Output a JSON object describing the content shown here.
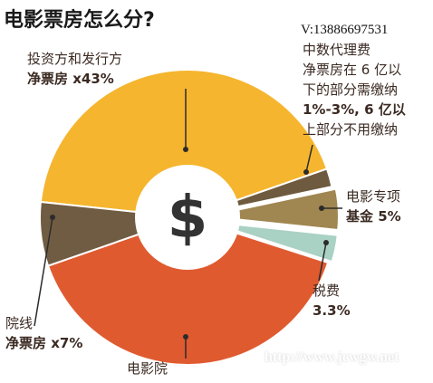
{
  "title": "电影票房怎么分?",
  "phone_text": "V:13886697531",
  "watermark": "http://www.jcwgw.net",
  "center_symbol": "$",
  "colors": {
    "investor": "#f5b52e",
    "agency": "#6e5a3f",
    "special_fund": "#a08650",
    "tax": "#a9d1c4",
    "cinema_chain": "#705c42",
    "cinema": "#e05a30",
    "center": "#ffffff",
    "symbol": "#333333"
  },
  "labels": {
    "investor_line1": "投资方和发行方",
    "investor_line2": "净票房 x43%",
    "agency_line1": "中数代理费",
    "agency_line2": "净票房在 6 亿以",
    "agency_line3": "下的部分需缴纳",
    "agency_line4": "1%-3%, 6 亿以",
    "agency_line5": "上部分不用缴纳",
    "fund_line1": "电影专项",
    "fund_line2": "基金 5%",
    "tax_line1": "税费",
    "tax_line2": "3.3%",
    "chain_line1": "院线",
    "chain_line2": "净票房 x7%",
    "cinema_line1": "电影院"
  },
  "chart_data": {
    "type": "pie",
    "title": "电影票房怎么分?",
    "slices": [
      {
        "label": "投资方和发行方 净票房 x43%",
        "value": 43,
        "color": "#f5b52e"
      },
      {
        "label": "中数代理费 (1%-3%)",
        "value": 2,
        "color": "#6e5a3f"
      },
      {
        "label": "电影专项基金 5%",
        "value": 5,
        "color": "#a08650",
        "exploded": true
      },
      {
        "label": "税费 3.3%",
        "value": 3.3,
        "color": "#a9d1c4",
        "exploded": true
      },
      {
        "label": "电影院",
        "value": 39.7,
        "color": "#e05a30"
      },
      {
        "label": "院线 净票房 x7%",
        "value": 7,
        "color": "#705c42"
      }
    ],
    "donut": true
  }
}
